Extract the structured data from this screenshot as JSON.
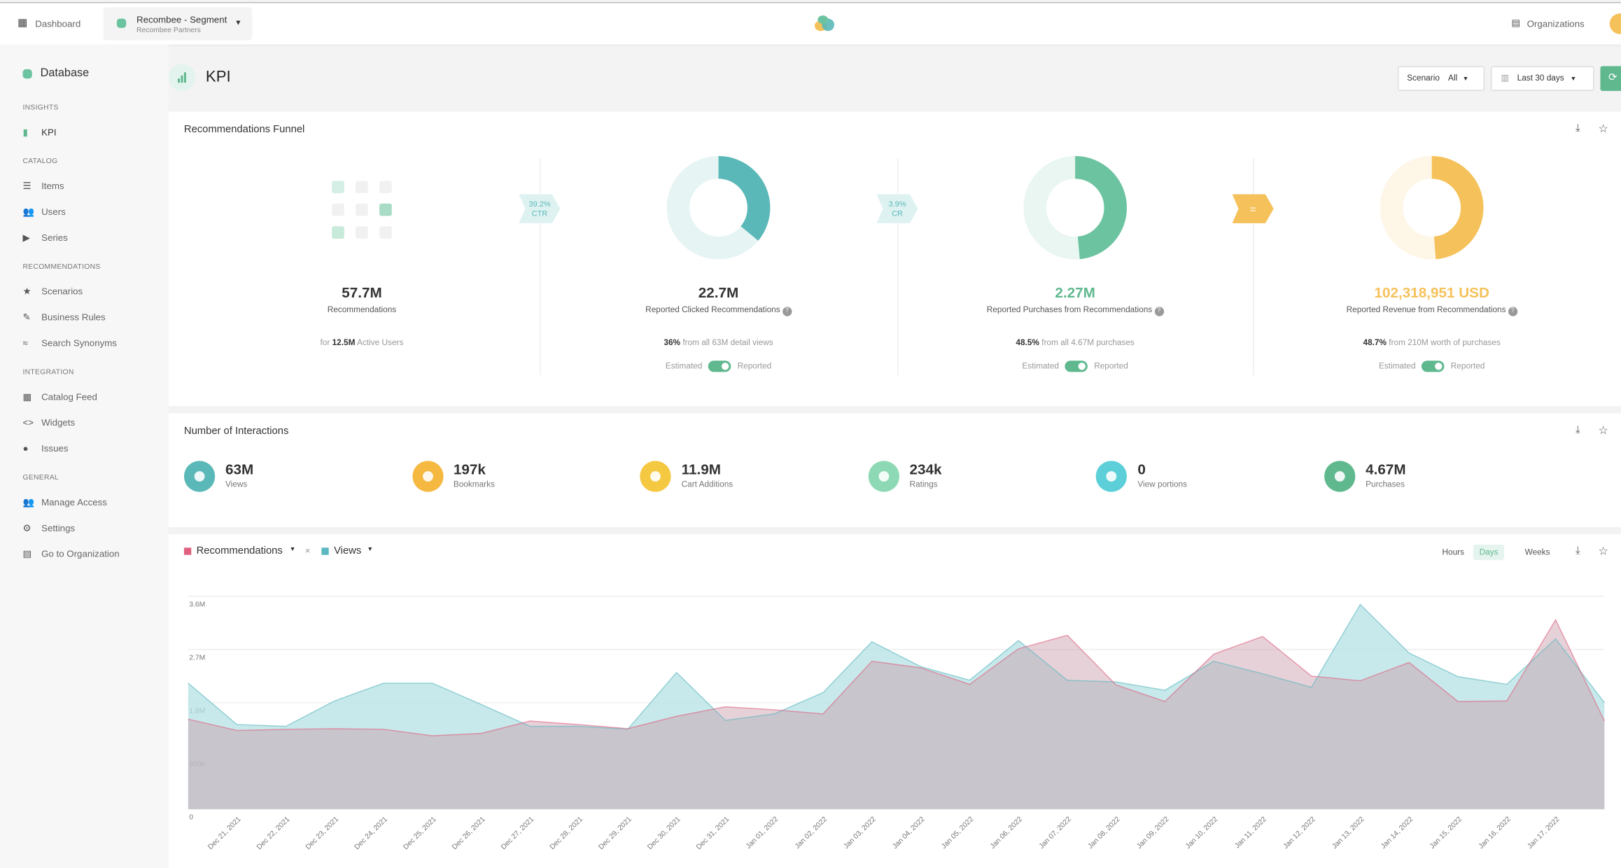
{
  "topbar": {
    "dashboard": "Dashboard",
    "project": "Recombee - Segment",
    "project_sub": "Recombee Partners",
    "organizations": "Organizations"
  },
  "sidebar": {
    "database": "Database",
    "sections": [
      {
        "title": "INSIGHTS",
        "items": [
          "KPI"
        ]
      },
      {
        "title": "CATALOG",
        "items": [
          "Items",
          "Users",
          "Series"
        ]
      },
      {
        "title": "RECOMMENDATIONS",
        "items": [
          "Scenarios",
          "Business Rules",
          "Search Synonyms"
        ]
      },
      {
        "title": "INTEGRATION",
        "items": [
          "Catalog Feed",
          "Widgets",
          "Issues"
        ]
      },
      {
        "title": "GENERAL",
        "items": [
          "Manage Access",
          "Settings",
          "Go to Organization"
        ]
      }
    ]
  },
  "page": {
    "title": "KPI",
    "scenario_label": "Scenario",
    "scenario_value": "All",
    "range": "Last 30 days"
  },
  "funnel": {
    "title": "Recommendations Funnel",
    "steps": [
      {
        "value": "57.7M",
        "label": "Recommendations",
        "detail_pre": "for ",
        "detail_bold": "12.5M",
        "detail": " Active Users"
      },
      {
        "value": "22.7M",
        "label": "Reported Clicked Recommendations",
        "share": 36,
        "share_label": "36%",
        "detail": " from all 63M detail views",
        "estimated": "Estimated",
        "reported": "Reported",
        "color": "#5bb8b8"
      },
      {
        "value": "2.27M",
        "label": "Reported Purchases from Recommendations",
        "share": 48.5,
        "share_label": "48.5%",
        "detail": " from all 4.67M purchases",
        "estimated": "Estimated",
        "reported": "Reported",
        "color": "#6cc3a0"
      },
      {
        "value": "102,318,951 USD",
        "label": "Reported Revenue from Recommendations",
        "share": 48.7,
        "share_label": "48.7%",
        "detail": " from 210M worth of purchases",
        "estimated": "Estimated",
        "reported": "Reported",
        "color": "#f5c15a"
      }
    ],
    "connectors": [
      {
        "value": "39.2%",
        "label": "CTR"
      },
      {
        "value": "3.9%",
        "label": "CR"
      },
      {
        "label": "="
      }
    ]
  },
  "interactions": {
    "title": "Number of Interactions",
    "items": [
      {
        "value": "63M",
        "label": "Views",
        "color": "#5bb8b8"
      },
      {
        "value": "197k",
        "label": "Bookmarks",
        "color": "#f5b942"
      },
      {
        "value": "11.9M",
        "label": "Cart Additions",
        "color": "#f5c842"
      },
      {
        "value": "234k",
        "label": "Ratings",
        "color": "#8ed9b5"
      },
      {
        "value": "0",
        "label": "View portions",
        "color": "#5ccfd8"
      },
      {
        "value": "4.67M",
        "label": "Purchases",
        "color": "#5fb88e"
      }
    ]
  },
  "chart_controls": {
    "separator": "×",
    "granularity": [
      "Hours",
      "Days",
      "Weeks"
    ],
    "selected": "Days"
  },
  "chart_data": {
    "type": "area",
    "categories": [
      null,
      "Dec 21, 2021",
      "Dec 22, 2021",
      "Dec 23, 2021",
      "Dec 24, 2021",
      "Dec 25, 2021",
      "Dec 26, 2021",
      "Dec 27, 2021",
      "Dec 28, 2021",
      "Dec 29, 2021",
      "Dec 30, 2021",
      "Dec 31, 2021",
      "Jan 01, 2022",
      "Jan 02, 2022",
      "Jan 03, 2022",
      "Jan 04, 2022",
      "Jan 05, 2022",
      "Jan 06, 2022",
      "Jan 07, 2022",
      "Jan 08, 2022",
      "Jan 09, 2022",
      "Jan 10, 2022",
      "Jan 11, 2022",
      "Jan 12, 2022",
      "Jan 13, 2022",
      "Jan 14, 2022",
      "Jan 15, 2022",
      "Jan 16, 2022",
      "Jan 17, 2022",
      null
    ],
    "series": [
      {
        "name": "Views",
        "color": "#5bb8c0",
        "values": [
          2130000,
          1430000,
          1400000,
          1830000,
          2130000,
          2130000,
          1770000,
          1400000,
          1400000,
          1350000,
          2310000,
          1500000,
          1610000,
          1970000,
          2830000,
          2410000,
          2180000,
          2850000,
          2180000,
          2150000,
          2010000,
          2500000,
          2290000,
          2060000,
          3460000,
          2640000,
          2240000,
          2110000,
          2880000,
          1800000
        ]
      },
      {
        "name": "Recommendations",
        "color": "#e0607e",
        "values": [
          1520000,
          1330000,
          1350000,
          1360000,
          1350000,
          1240000,
          1280000,
          1490000,
          1430000,
          1360000,
          1570000,
          1730000,
          1680000,
          1610000,
          2500000,
          2390000,
          2110000,
          2710000,
          2940000,
          2100000,
          1820000,
          2620000,
          2920000,
          2250000,
          2170000,
          2480000,
          1820000,
          1830000,
          3200000,
          1490000
        ]
      }
    ],
    "ylim": [
      0,
      3600000
    ],
    "yticks": [
      0,
      {
        "value": 900000,
        "label": "900k"
      },
      {
        "value": 1800000,
        "label": "1.8M"
      },
      {
        "value": 2700000,
        "label": "2.7M"
      },
      {
        "value": 3600000,
        "label": "3.6M"
      }
    ],
    "grid": true
  }
}
